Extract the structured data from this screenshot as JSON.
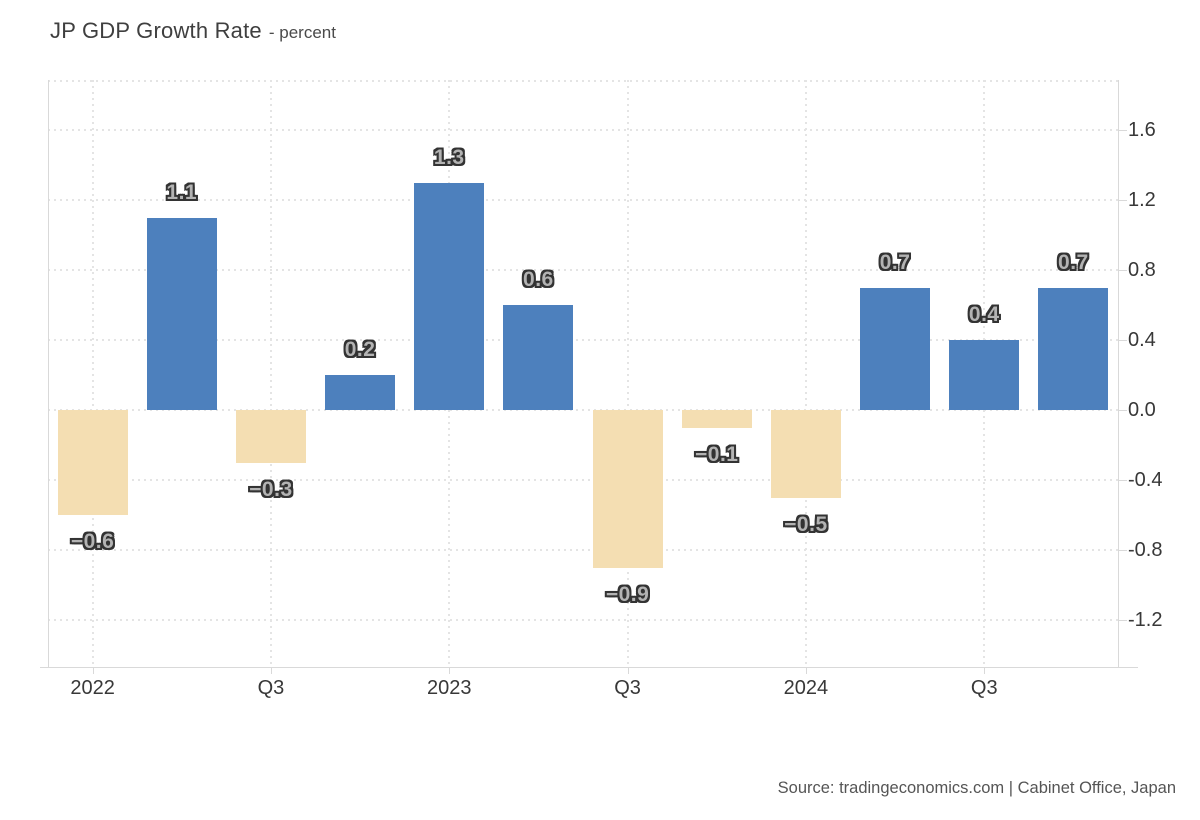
{
  "header": {
    "title": "JP GDP Growth Rate",
    "subtitle": "- percent"
  },
  "footer": {
    "source": "Source: tradingeconomics.com | Cabinet Office, Japan"
  },
  "colors": {
    "positive_bar": "#4d80bd",
    "negative_bar": "#f4deb2",
    "grid": "#e4e4e4",
    "axis": "#d9d9d9",
    "axis_text": "#383838",
    "data_label_fill": "#b3b3b3",
    "data_label_outline": "#333333"
  },
  "chart_data": {
    "type": "bar",
    "title": "JP GDP Growth Rate",
    "ylabel": "percent",
    "xlabel": "",
    "categories": [
      "2022 Q1",
      "2022 Q2",
      "2022 Q3",
      "2022 Q4",
      "2023 Q1",
      "2023 Q2",
      "2023 Q3",
      "2023 Q4",
      "2024 Q1",
      "2024 Q2",
      "2024 Q3",
      "2024 Q4"
    ],
    "values": [
      -0.6,
      1.1,
      -0.3,
      0.2,
      1.3,
      0.6,
      -0.9,
      -0.1,
      -0.5,
      0.7,
      0.4,
      0.7
    ],
    "data_labels": [
      "−0.6",
      "1.1",
      "−0.3",
      "0.2",
      "1.3",
      "0.6",
      "−0.9",
      "−0.1",
      "−0.5",
      "0.7",
      "0.4",
      "0.7"
    ],
    "x_tick_labels": [
      "2022",
      "Q3",
      "2023",
      "Q3",
      "2024",
      "Q3"
    ],
    "x_tick_slots": [
      0,
      2,
      4,
      6,
      8,
      10
    ],
    "y_ticks": [
      1.6,
      1.2,
      0.8,
      0.4,
      0,
      -0.4,
      -0.8,
      -1.2
    ],
    "y_tick_labels": [
      "1.6",
      "1.2",
      "0.8",
      "0.4",
      "0.0",
      "-0.4",
      "-0.8",
      "-1.2"
    ],
    "ylim": [
      -1.47,
      1.89
    ],
    "grid": "dotted",
    "legend": "none",
    "positive_color": "#4d80bd",
    "negative_color": "#f4deb2"
  }
}
